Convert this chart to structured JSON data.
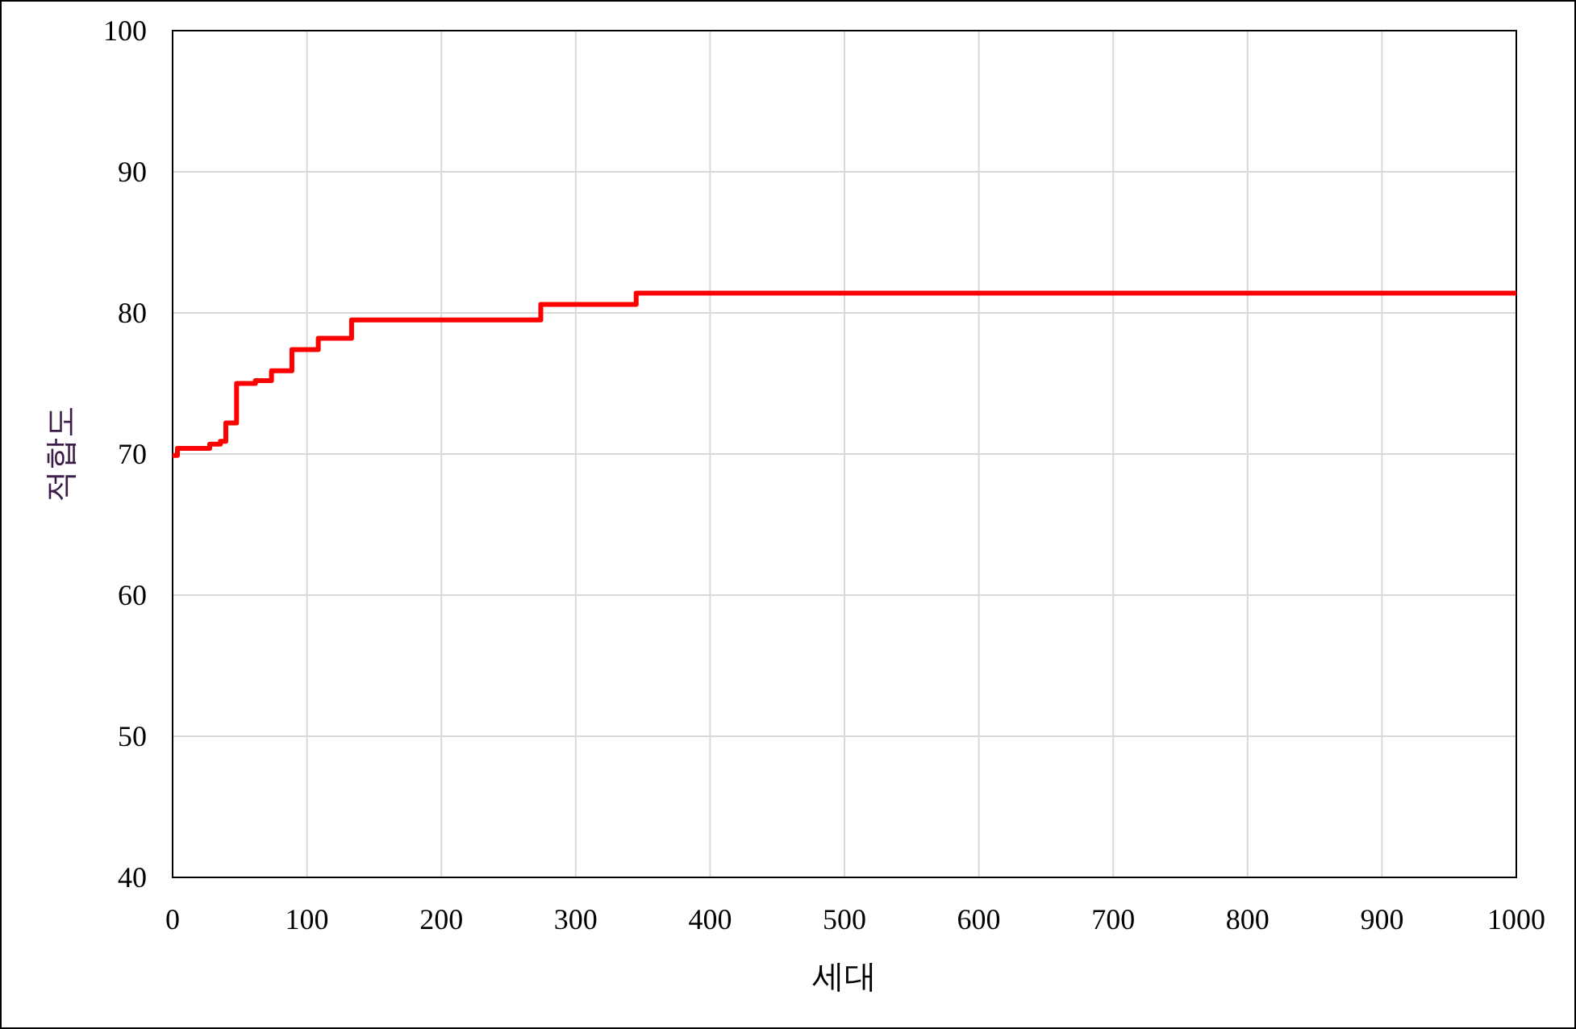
{
  "chart_data": {
    "type": "step",
    "xlabel": "세대",
    "ylabel": "적합도",
    "x": [
      0,
      3.6,
      27.6,
      35.6,
      39.6,
      47.6,
      61.6,
      73.6,
      88.8,
      108.4,
      133.2,
      274,
      345,
      1000
    ],
    "values": [
      69.9,
      70.4,
      70.7,
      70.9,
      72.2,
      75.0,
      75.2,
      75.9,
      77.4,
      78.2,
      79.5,
      80.6,
      81.4,
      81.4
    ],
    "color": "#ff0000",
    "xlim": [
      0,
      1000
    ],
    "xticks": [
      0,
      100,
      200,
      300,
      400,
      500,
      600,
      700,
      800,
      900,
      1000
    ],
    "ylim": [
      40,
      100
    ],
    "yticks": [
      40,
      50,
      60,
      70,
      80,
      90,
      100
    ],
    "grid": true
  }
}
